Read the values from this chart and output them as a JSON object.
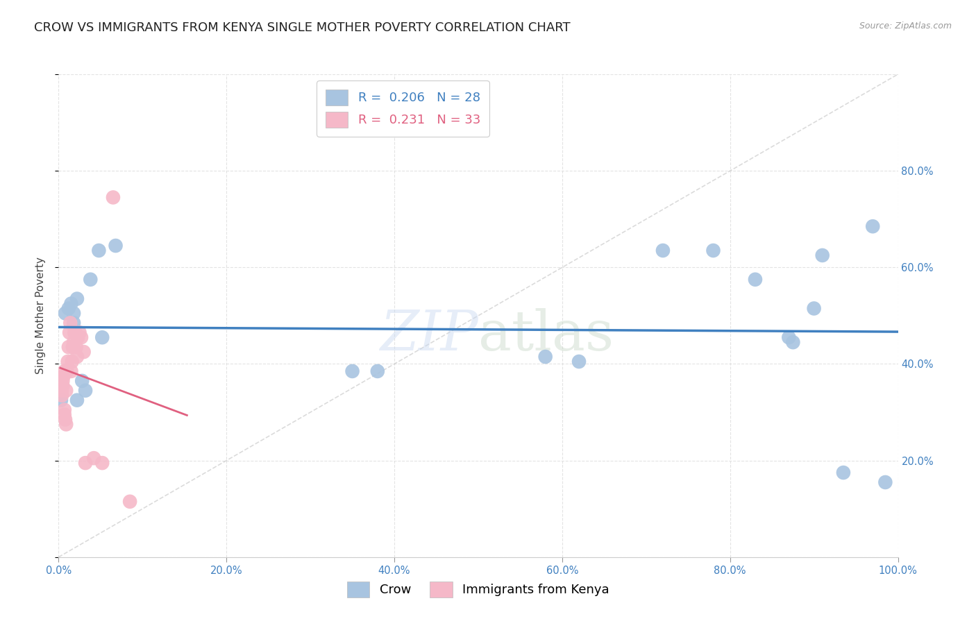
{
  "title": "CROW VS IMMIGRANTS FROM KENYA SINGLE MOTHER POVERTY CORRELATION CHART",
  "source": "Source: ZipAtlas.com",
  "ylabel": "Single Mother Poverty",
  "watermark": "ZIPatlas",
  "xlim": [
    0,
    1.0
  ],
  "ylim": [
    0,
    1.0
  ],
  "crow_R": 0.206,
  "crow_N": 28,
  "kenya_R": 0.231,
  "kenya_N": 33,
  "crow_color": "#a8c4e0",
  "kenya_color": "#f5b8c8",
  "crow_line_color": "#4080c0",
  "kenya_line_color": "#e06080",
  "diagonal_color": "#cccccc",
  "crow_scatter_x": [
    0.003,
    0.008,
    0.012,
    0.015,
    0.018,
    0.018,
    0.022,
    0.022,
    0.028,
    0.032,
    0.038,
    0.048,
    0.052,
    0.068,
    0.35,
    0.38,
    0.58,
    0.62,
    0.72,
    0.78,
    0.83,
    0.87,
    0.875,
    0.9,
    0.91,
    0.935,
    0.97,
    0.985
  ],
  "crow_scatter_y": [
    0.325,
    0.505,
    0.515,
    0.525,
    0.505,
    0.485,
    0.535,
    0.325,
    0.365,
    0.345,
    0.575,
    0.635,
    0.455,
    0.645,
    0.385,
    0.385,
    0.415,
    0.405,
    0.635,
    0.635,
    0.575,
    0.455,
    0.445,
    0.515,
    0.625,
    0.175,
    0.685,
    0.155
  ],
  "kenya_scatter_x": [
    0.004,
    0.004,
    0.005,
    0.005,
    0.006,
    0.007,
    0.007,
    0.007,
    0.008,
    0.009,
    0.009,
    0.01,
    0.011,
    0.012,
    0.013,
    0.014,
    0.015,
    0.016,
    0.017,
    0.018,
    0.019,
    0.02,
    0.021,
    0.022,
    0.023,
    0.025,
    0.027,
    0.03,
    0.032,
    0.042,
    0.052,
    0.065,
    0.085
  ],
  "kenya_scatter_y": [
    0.335,
    0.345,
    0.355,
    0.365,
    0.375,
    0.385,
    0.305,
    0.295,
    0.285,
    0.275,
    0.345,
    0.385,
    0.405,
    0.435,
    0.465,
    0.485,
    0.385,
    0.405,
    0.435,
    0.445,
    0.465,
    0.465,
    0.435,
    0.415,
    0.455,
    0.465,
    0.455,
    0.425,
    0.195,
    0.205,
    0.195,
    0.745,
    0.115
  ],
  "background_color": "#ffffff",
  "grid_color": "#dddddd",
  "title_fontsize": 13,
  "axis_label_fontsize": 11,
  "tick_fontsize": 10.5,
  "legend_fontsize": 13
}
